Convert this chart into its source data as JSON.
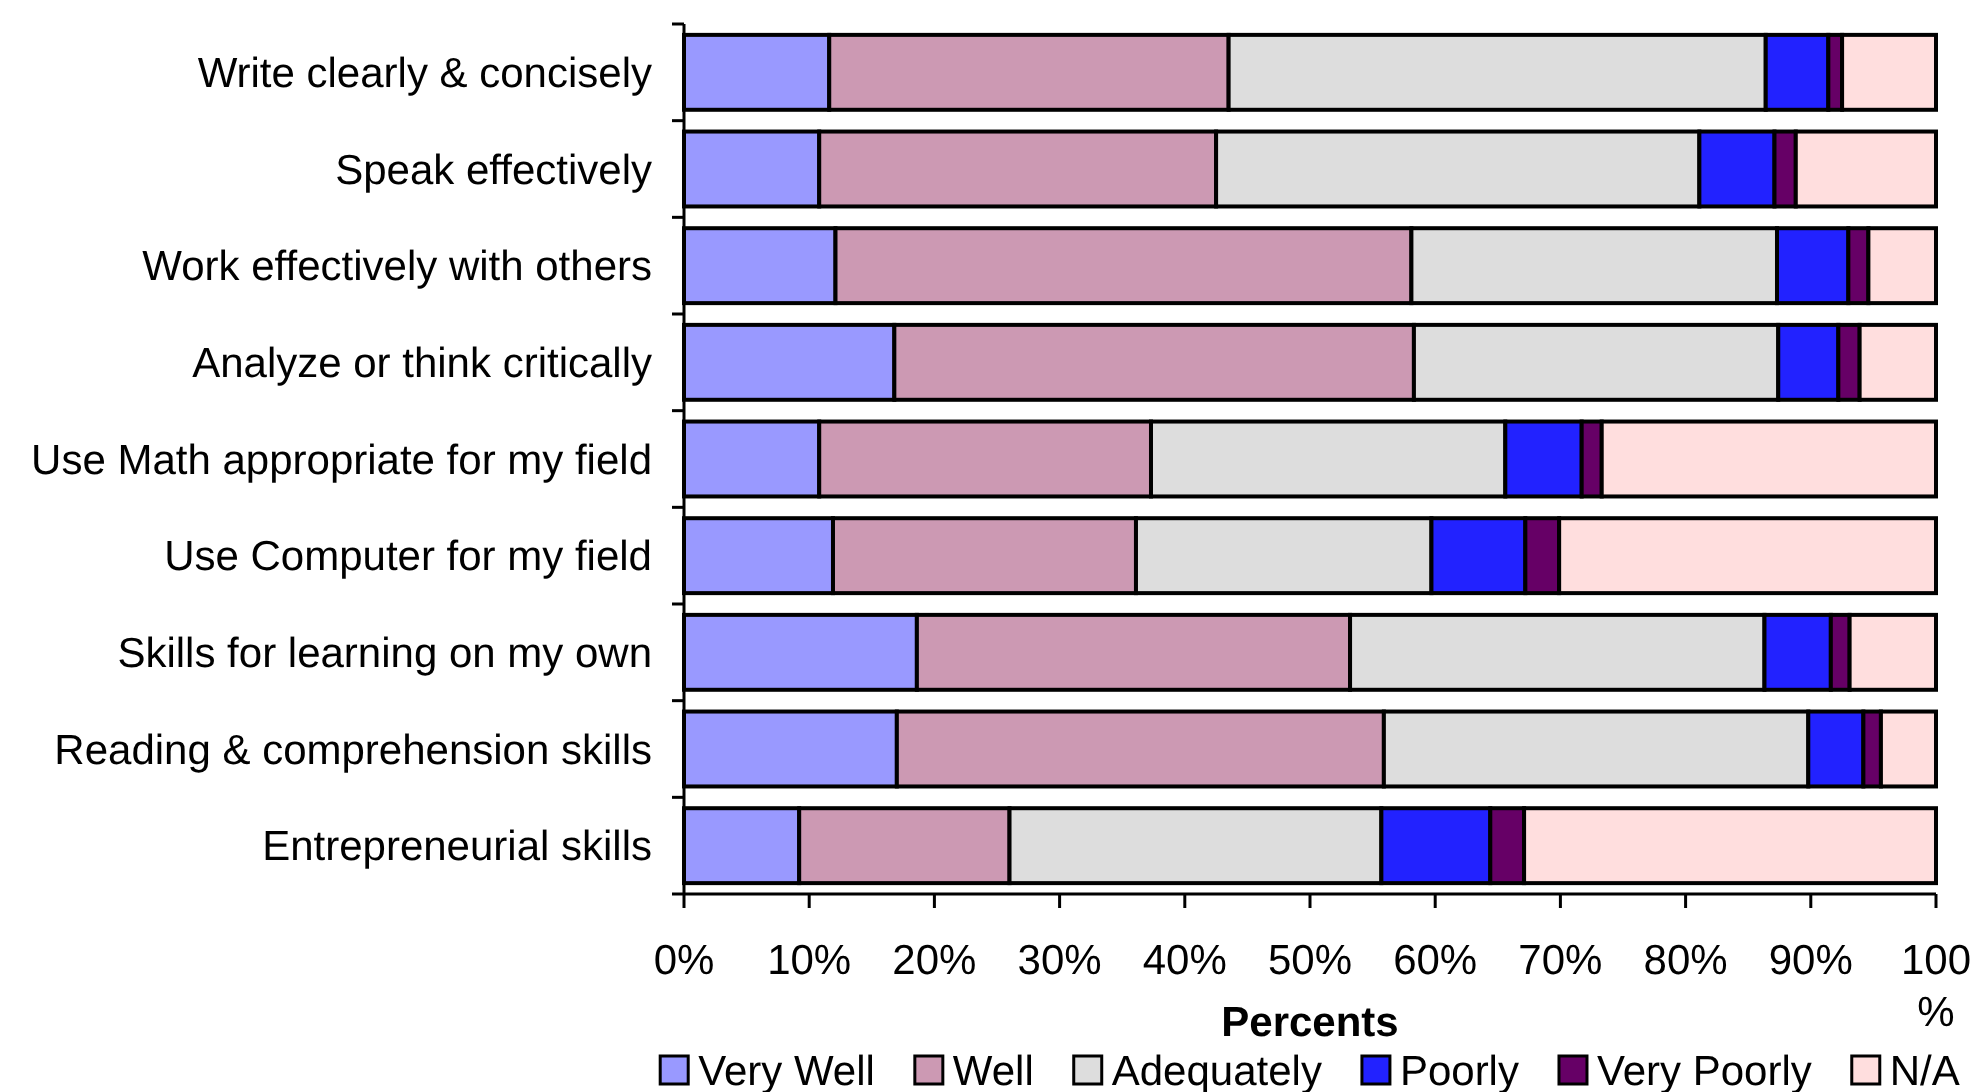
{
  "chart_data": {
    "type": "bar",
    "orientation": "horizontal",
    "stacked": true,
    "categories": [
      "Write clearly & concisely",
      "Speak effectively",
      "Work effectively with others",
      "Analyze or think critically",
      "Use Math appropriate for my field",
      "Use Computer for my field",
      "Skills for learning on my own",
      "Reading & comprehension skills",
      "Entrepreneurial skills"
    ],
    "series": [
      {
        "name": "Very Well",
        "color": "#9999ff",
        "values": [
          11.6,
          10.8,
          12.1,
          16.8,
          10.8,
          11.9,
          18.6,
          17.0,
          9.2
        ]
      },
      {
        "name": "Well",
        "color": "#cc99b3",
        "values": [
          31.9,
          31.7,
          46.0,
          41.5,
          26.5,
          24.2,
          34.6,
          38.9,
          16.8
        ]
      },
      {
        "name": "Adequately",
        "color": "#dddddd",
        "values": [
          42.9,
          38.6,
          29.2,
          29.1,
          28.3,
          23.6,
          33.1,
          33.9,
          29.7
        ]
      },
      {
        "name": "Poorly",
        "color": "#2222ff",
        "values": [
          5.0,
          6.0,
          5.7,
          4.8,
          6.1,
          7.5,
          5.3,
          4.4,
          8.7
        ]
      },
      {
        "name": "Very Poorly",
        "color": "#660066",
        "values": [
          1.1,
          1.7,
          1.6,
          1.7,
          1.6,
          2.7,
          1.5,
          1.4,
          2.7
        ]
      },
      {
        "name": "N/A",
        "color": "#ffdede",
        "values": [
          7.5,
          11.2,
          5.4,
          6.1,
          26.7,
          30.1,
          6.9,
          4.4,
          32.9
        ]
      }
    ],
    "xlim": [
      0,
      100
    ],
    "xticks": [
      {
        "value": 0,
        "label": "0%"
      },
      {
        "value": 10,
        "label": "10%"
      },
      {
        "value": 20,
        "label": "20%"
      },
      {
        "value": 30,
        "label": "30%"
      },
      {
        "value": 40,
        "label": "40%"
      },
      {
        "value": 50,
        "label": "50%"
      },
      {
        "value": 60,
        "label": "60%"
      },
      {
        "value": 70,
        "label": "70%"
      },
      {
        "value": 80,
        "label": "80%"
      },
      {
        "value": 90,
        "label": "90%"
      },
      {
        "value": 100,
        "label": "100%"
      }
    ],
    "xlabel": "Percents",
    "legend": "bottom"
  }
}
